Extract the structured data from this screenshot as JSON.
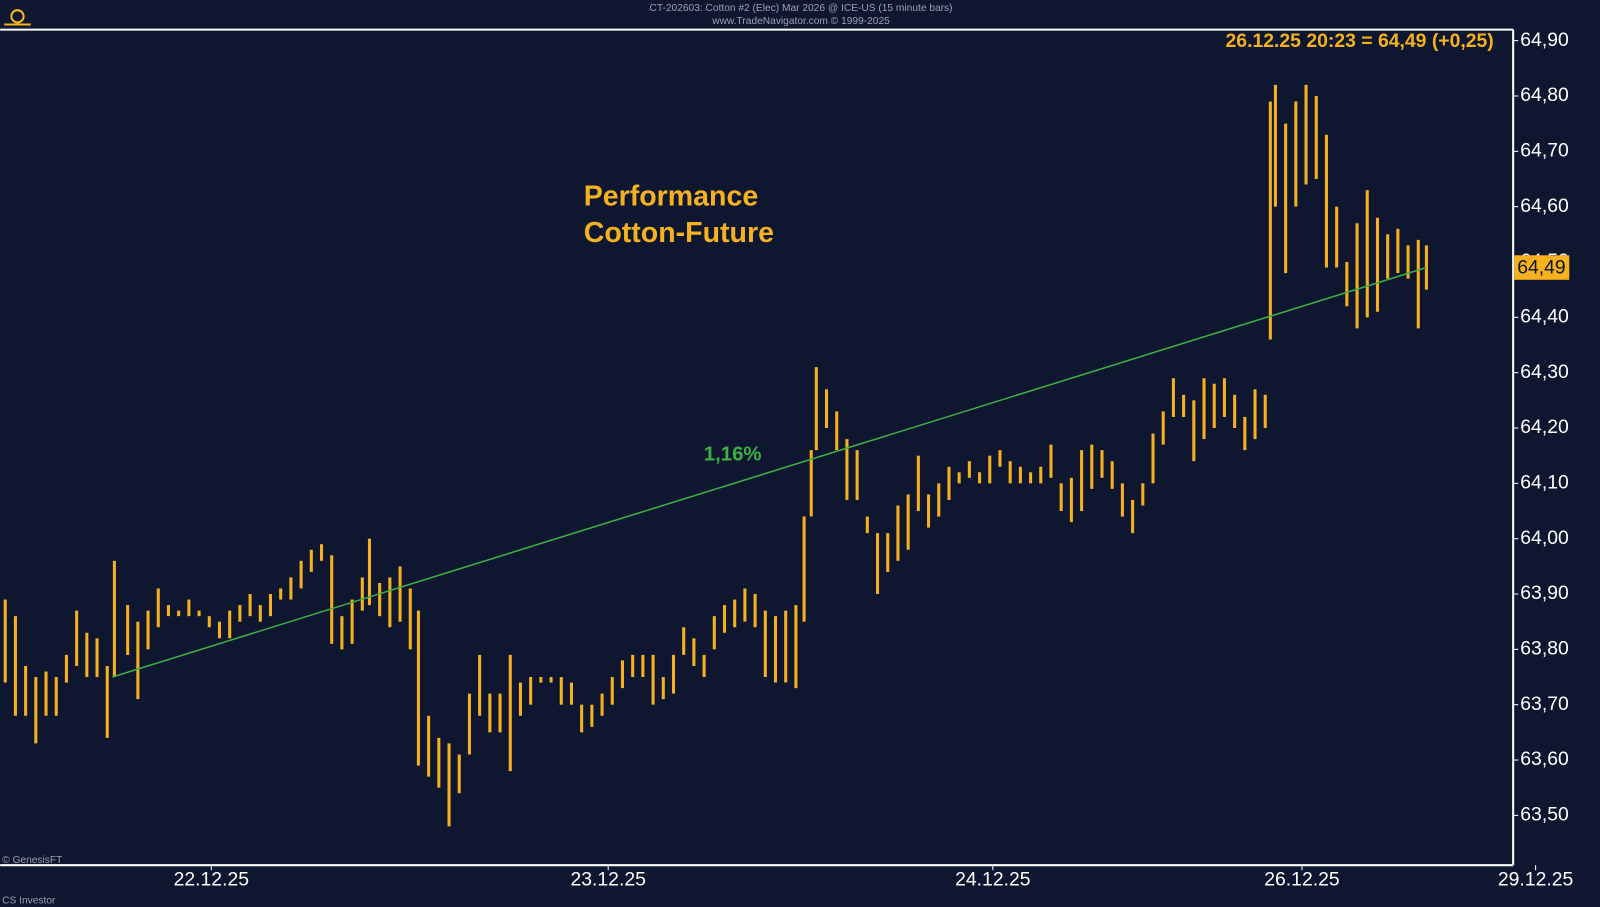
{
  "chart_data": {
    "type": "price_bars",
    "header": "CT-202603: Cotton #2 (Elec) Mar 2026 @ ICE-US (15 minute bars)",
    "subheader": "www.TradeNavigator.com © 1999-2025",
    "title_lines": [
      "Performance",
      "Cotton-Future"
    ],
    "quote": "26.12.25 20:23 = 64,49 (+0,25)",
    "last_price": {
      "value": 64.49,
      "label": "64,49"
    },
    "source": "© GenesisFT",
    "footer": "CS Investor",
    "color": "#f5b21e",
    "x": [
      0.5,
      1.5,
      2.5,
      3.5,
      4.5,
      5.5,
      6.5,
      7.5,
      8.5,
      9.5,
      10.5,
      11.2,
      12.5,
      13.5,
      14.5,
      15.5,
      16.5,
      17.5,
      18.5,
      19.5,
      20.5,
      21.5,
      22.5,
      23.5,
      24.5,
      25.5,
      26.5,
      27.5,
      28.5,
      29.5,
      30.5,
      31.5,
      32.5,
      33.5,
      34.5,
      35.5,
      36.2,
      37.2,
      38.2,
      39.2,
      40.2,
      41,
      42,
      43,
      44,
      45,
      46,
      47,
      48,
      49,
      50,
      51,
      52,
      53,
      54,
      55,
      56,
      57,
      58,
      59,
      60,
      61,
      62,
      63,
      64,
      65,
      66,
      67,
      68,
      69,
      70,
      71,
      72,
      73,
      74,
      75,
      76,
      77,
      78,
      78.8,
      79.5,
      80,
      81,
      82,
      83,
      84,
      85,
      86,
      87,
      88,
      89,
      90,
      91,
      92,
      93,
      94,
      95,
      96,
      97,
      98,
      99,
      100,
      101,
      102,
      103,
      104,
      105,
      106,
      107,
      108,
      109,
      110,
      111,
      112,
      113,
      114,
      115,
      116,
      117,
      118,
      119,
      120,
      121,
      122,
      123,
      124,
      124.5,
      125,
      126,
      127,
      128,
      129,
      130,
      131,
      132,
      133,
      134,
      135,
      136,
      137,
      138,
      139,
      139.8
    ],
    "high": [
      63.89,
      63.86,
      63.77,
      63.75,
      63.76,
      63.75,
      63.79,
      63.87,
      63.83,
      63.82,
      63.77,
      63.96,
      63.88,
      63.85,
      63.87,
      63.91,
      63.88,
      63.87,
      63.89,
      63.87,
      63.86,
      63.85,
      63.87,
      63.88,
      63.9,
      63.88,
      63.9,
      63.91,
      63.93,
      63.96,
      63.98,
      63.99,
      63.97,
      63.86,
      63.89,
      63.93,
      64.0,
      63.92,
      63.93,
      63.95,
      63.91,
      63.87,
      63.68,
      63.64,
      63.63,
      63.61,
      63.72,
      63.79,
      63.72,
      63.72,
      63.79,
      63.74,
      63.75,
      63.75,
      63.75,
      63.75,
      63.74,
      63.7,
      63.7,
      63.72,
      63.75,
      63.78,
      63.79,
      63.79,
      63.79,
      63.75,
      63.79,
      63.84,
      63.82,
      63.79,
      63.86,
      63.88,
      63.89,
      63.91,
      63.9,
      63.87,
      63.86,
      63.87,
      63.88,
      64.04,
      64.16,
      64.31,
      64.27,
      64.23,
      64.18,
      64.16,
      64.04,
      64.01,
      64.01,
      64.06,
      64.08,
      64.15,
      64.08,
      64.1,
      64.13,
      64.12,
      64.14,
      64.12,
      64.15,
      64.16,
      64.14,
      64.13,
      64.12,
      64.13,
      64.17,
      64.1,
      64.11,
      64.16,
      64.17,
      64.16,
      64.14,
      64.1,
      64.07,
      64.1,
      64.19,
      64.23,
      64.29,
      64.26,
      64.25,
      64.29,
      64.28,
      64.29,
      64.26,
      64.22,
      64.27,
      64.26,
      64.79,
      64.82,
      64.75,
      64.79,
      64.82,
      64.8,
      64.73,
      64.6,
      64.5,
      64.57,
      64.63,
      64.58,
      64.55,
      64.56,
      64.53,
      64.54,
      64.53
    ],
    "low": [
      63.74,
      63.68,
      63.68,
      63.63,
      63.68,
      63.68,
      63.74,
      63.77,
      63.75,
      63.75,
      63.64,
      63.75,
      63.79,
      63.71,
      63.8,
      63.84,
      63.86,
      63.86,
      63.86,
      63.86,
      63.84,
      63.82,
      63.82,
      63.85,
      63.86,
      63.85,
      63.86,
      63.89,
      63.89,
      63.91,
      63.94,
      63.96,
      63.81,
      63.8,
      63.81,
      63.87,
      63.88,
      63.86,
      63.84,
      63.85,
      63.8,
      63.59,
      63.57,
      63.55,
      63.48,
      63.54,
      63.61,
      63.68,
      63.65,
      63.65,
      63.58,
      63.68,
      63.7,
      63.74,
      63.74,
      63.7,
      63.7,
      63.65,
      63.66,
      63.68,
      63.7,
      63.73,
      63.75,
      63.75,
      63.7,
      63.71,
      63.72,
      63.79,
      63.77,
      63.75,
      63.8,
      63.83,
      63.84,
      63.85,
      63.84,
      63.75,
      63.74,
      63.74,
      63.73,
      63.85,
      64.04,
      64.16,
      64.2,
      64.16,
      64.07,
      64.07,
      64.01,
      63.9,
      63.94,
      63.96,
      63.98,
      64.05,
      64.02,
      64.04,
      64.07,
      64.1,
      64.11,
      64.1,
      64.1,
      64.13,
      64.1,
      64.1,
      64.1,
      64.1,
      64.11,
      64.05,
      64.03,
      64.05,
      64.09,
      64.11,
      64.09,
      64.04,
      64.01,
      64.06,
      64.1,
      64.17,
      64.22,
      64.22,
      64.14,
      64.18,
      64.2,
      64.22,
      64.2,
      64.16,
      64.18,
      64.2,
      64.36,
      64.6,
      64.48,
      64.6,
      64.64,
      64.65,
      64.49,
      64.49,
      64.42,
      64.38,
      64.4,
      64.41,
      64.47,
      64.48,
      64.47,
      64.38,
      64.45
    ],
    "trendline": {
      "color": "#3cb043",
      "label": "1,16%",
      "x": [
        11,
        139.8
      ],
      "y": [
        63.75,
        64.49
      ]
    },
    "xlim": [
      0,
      151
    ],
    "xticks": [
      {
        "value": 20.7,
        "label": "22.12.25"
      },
      {
        "value": 59.6,
        "label": "23.12.25"
      },
      {
        "value": 97.3,
        "label": "24.12.25"
      },
      {
        "value": 127.6,
        "label": "26.12.25"
      },
      {
        "value": 150.5,
        "label": "29.12.25"
      }
    ],
    "ylim": [
      63.41,
      64.92
    ],
    "yticks": [
      {
        "value": 63.5,
        "label": "63,50"
      },
      {
        "value": 63.6,
        "label": "63,60"
      },
      {
        "value": 63.7,
        "label": "63,70"
      },
      {
        "value": 63.8,
        "label": "63,80"
      },
      {
        "value": 63.9,
        "label": "63,90"
      },
      {
        "value": 64.0,
        "label": "64,00"
      },
      {
        "value": 64.1,
        "label": "64,10"
      },
      {
        "value": 64.2,
        "label": "64,20"
      },
      {
        "value": 64.3,
        "label": "64,30"
      },
      {
        "value": 64.4,
        "label": "64,40"
      },
      {
        "value": 64.5,
        "label": "64,50"
      },
      {
        "value": 64.6,
        "label": "64,60"
      },
      {
        "value": 64.7,
        "label": "64,70"
      },
      {
        "value": 64.8,
        "label": "64,80"
      },
      {
        "value": 64.9,
        "label": "64,90"
      }
    ],
    "grid": false
  }
}
